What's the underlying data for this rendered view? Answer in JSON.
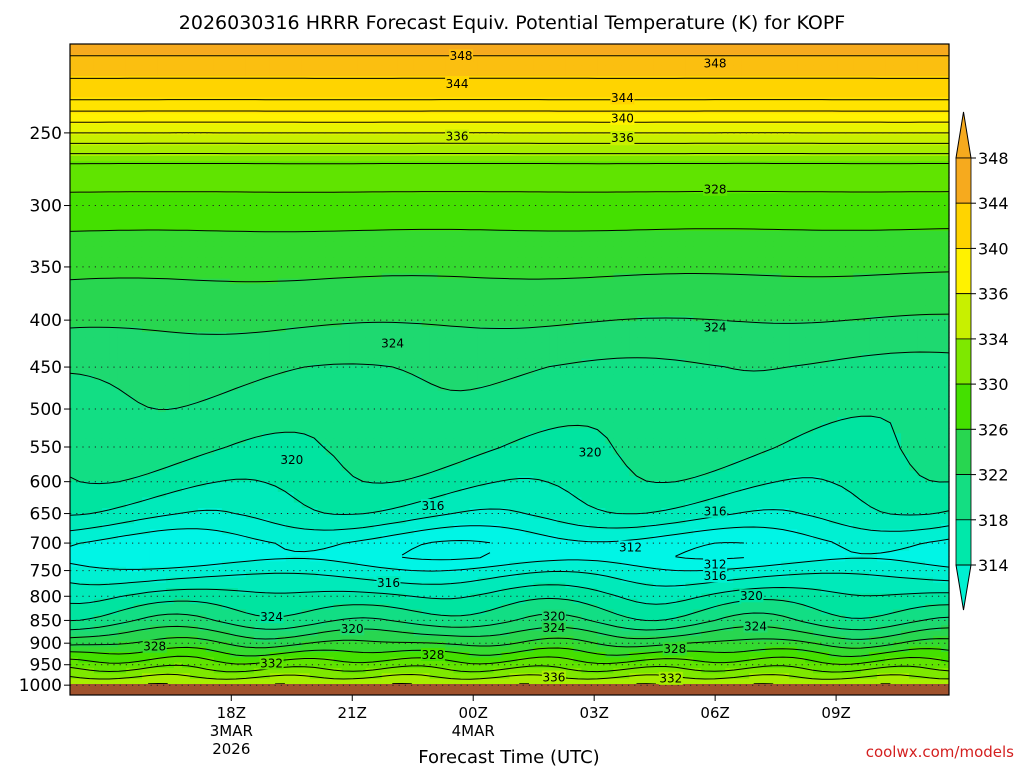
{
  "chart_data": {
    "type": "heatmap",
    "title": "2026030316 HRRR Forecast Equiv. Potential Temperature (K) for KOPF",
    "xlabel": "Forecast Time (UTC)",
    "ylabel": "",
    "credit": "coolwx.com/models",
    "y_axis": {
      "scale": "log-pressure",
      "ylim_hPa": [
        1025,
        200
      ],
      "ticks": [
        "250",
        "300",
        "350",
        "400",
        "450",
        "500",
        "550",
        "600",
        "650",
        "700",
        "750",
        "800",
        "850",
        "900",
        "950",
        "1000"
      ]
    },
    "x_axis": {
      "xlim_hours_from_start": [
        -2.0,
        19.8
      ],
      "ticks": [
        {
          "hour": 2,
          "line1": "18Z",
          "line2": "3MAR",
          "line3": "2026"
        },
        {
          "hour": 5,
          "line1": "21Z",
          "line2": "",
          "line3": ""
        },
        {
          "hour": 8,
          "line1": "00Z",
          "line2": "4MAR",
          "line3": ""
        },
        {
          "hour": 11,
          "line1": "03Z",
          "line2": "",
          "line3": ""
        },
        {
          "hour": 14,
          "line1": "06Z",
          "line2": "",
          "line3": ""
        },
        {
          "hour": 17,
          "line1": "09Z",
          "line2": "",
          "line3": ""
        }
      ]
    },
    "colorbar": {
      "levels": [
        "314",
        "318",
        "322",
        "326",
        "330",
        "334",
        "336",
        "340",
        "344",
        "348"
      ],
      "colors": [
        "#00f0d2",
        "#00e8aa",
        "#14de82",
        "#28d650",
        "#44e000",
        "#7ee800",
        "#c8f000",
        "#fff200",
        "#ffd400",
        "#f6aa1e"
      ]
    },
    "shading_thresholds": [
      {
        "level": 312,
        "color": "#00f5e6"
      },
      {
        "level": 314,
        "color": "#00f0d2"
      },
      {
        "level": 316,
        "color": "#00eaba"
      },
      {
        "level": 318,
        "color": "#00e4a0"
      },
      {
        "level": 320,
        "color": "#12de84"
      },
      {
        "level": 322,
        "color": "#1ed970"
      },
      {
        "level": 324,
        "color": "#28d650"
      },
      {
        "level": 326,
        "color": "#34da30"
      },
      {
        "level": 328,
        "color": "#44e000"
      },
      {
        "level": 330,
        "color": "#60e400"
      },
      {
        "level": 332,
        "color": "#7ee800"
      },
      {
        "level": 334,
        "color": "#a8ee00"
      },
      {
        "level": 336,
        "color": "#c8f000"
      },
      {
        "level": 338,
        "color": "#e8f400"
      },
      {
        "level": 340,
        "color": "#fff200"
      },
      {
        "level": 342,
        "color": "#ffe400"
      },
      {
        "level": 344,
        "color": "#ffd400"
      },
      {
        "level": 346,
        "color": "#fbbf10"
      },
      {
        "level": 348,
        "color": "#f6aa1e"
      }
    ],
    "contour_labels": [
      {
        "text": "348",
        "hour": 7.7,
        "p": 206
      },
      {
        "text": "348",
        "hour": 14.0,
        "p": 210
      },
      {
        "text": "344",
        "hour": 7.6,
        "p": 221
      },
      {
        "text": "344",
        "hour": 11.7,
        "p": 229
      },
      {
        "text": "340",
        "hour": 11.7,
        "p": 241
      },
      {
        "text": "336",
        "hour": 7.6,
        "p": 252
      },
      {
        "text": "336",
        "hour": 11.7,
        "p": 253
      },
      {
        "text": "328",
        "hour": 14.0,
        "p": 288
      },
      {
        "text": "324",
        "hour": 6.0,
        "p": 424
      },
      {
        "text": "324",
        "hour": 14.0,
        "p": 407
      },
      {
        "text": "320",
        "hour": 3.5,
        "p": 568
      },
      {
        "text": "320",
        "hour": 10.9,
        "p": 557
      },
      {
        "text": "316",
        "hour": 7.0,
        "p": 637
      },
      {
        "text": "316",
        "hour": 14.0,
        "p": 646
      },
      {
        "text": "312",
        "hour": 11.9,
        "p": 707
      },
      {
        "text": "312",
        "hour": 14.0,
        "p": 738
      },
      {
        "text": "316",
        "hour": 5.9,
        "p": 773
      },
      {
        "text": "316",
        "hour": 14.0,
        "p": 760
      },
      {
        "text": "320",
        "hour": 14.9,
        "p": 799
      },
      {
        "text": "320",
        "hour": 10.0,
        "p": 841
      },
      {
        "text": "324",
        "hour": 3.0,
        "p": 842
      },
      {
        "text": "324",
        "hour": 10.0,
        "p": 866
      },
      {
        "text": "324",
        "hour": 15.0,
        "p": 862
      },
      {
        "text": "320",
        "hour": 5.0,
        "p": 868
      },
      {
        "text": "328",
        "hour": 0.1,
        "p": 907
      },
      {
        "text": "328",
        "hour": 7.0,
        "p": 926
      },
      {
        "text": "328",
        "hour": 13.0,
        "p": 913
      },
      {
        "text": "332",
        "hour": 3.0,
        "p": 946
      },
      {
        "text": "332",
        "hour": 12.9,
        "p": 983
      },
      {
        "text": "336",
        "hour": 10.0,
        "p": 980
      }
    ]
  }
}
